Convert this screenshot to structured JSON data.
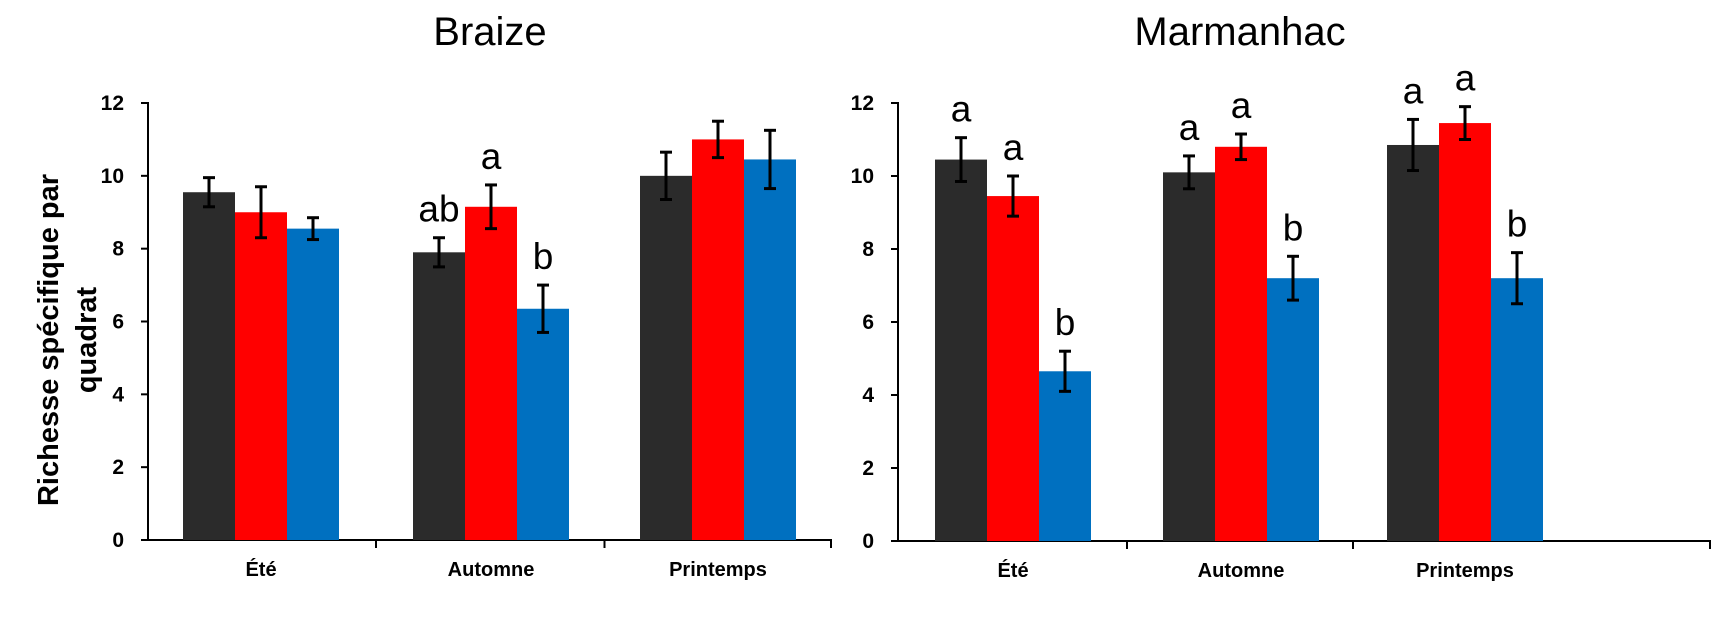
{
  "ylabel_line1": "Richesse spécifique par",
  "ylabel_line2": "quadrat",
  "chart_data": [
    {
      "type": "bar",
      "title": "Braize",
      "categories": [
        "Été",
        "Automne",
        "Printemps"
      ],
      "ylim": [
        0,
        12
      ],
      "yticks": [
        0,
        2,
        4,
        6,
        8,
        10,
        12
      ],
      "colors": [
        "#2b2b2b",
        "#ff0000",
        "#0070c0"
      ],
      "series": [
        {
          "values": [
            9.55,
            7.9,
            10.0
          ],
          "errors": [
            0.4,
            0.4,
            0.65
          ],
          "labels": [
            "",
            "ab",
            ""
          ]
        },
        {
          "values": [
            9.0,
            9.15,
            11.0
          ],
          "errors": [
            0.7,
            0.6,
            0.5
          ],
          "labels": [
            "",
            "a",
            ""
          ]
        },
        {
          "values": [
            8.55,
            6.35,
            10.45
          ],
          "errors": [
            0.3,
            0.65,
            0.8
          ],
          "labels": [
            "",
            "b",
            ""
          ]
        }
      ]
    },
    {
      "type": "bar",
      "title": "Marmanhac",
      "categories": [
        "Été",
        "Automne",
        "Printemps"
      ],
      "ylim": [
        0,
        12
      ],
      "yticks": [
        0,
        2,
        4,
        6,
        8,
        10,
        12
      ],
      "colors": [
        "#2b2b2b",
        "#ff0000",
        "#0070c0"
      ],
      "series": [
        {
          "values": [
            10.45,
            10.1,
            10.85
          ],
          "errors": [
            0.6,
            0.45,
            0.7
          ],
          "labels": [
            "a",
            "a",
            "a"
          ]
        },
        {
          "values": [
            9.45,
            10.8,
            11.45
          ],
          "errors": [
            0.55,
            0.35,
            0.45
          ],
          "labels": [
            "a",
            "a",
            "a"
          ]
        },
        {
          "values": [
            4.65,
            7.2,
            7.2
          ],
          "errors": [
            0.55,
            0.6,
            0.7
          ],
          "labels": [
            "b",
            "b",
            "b"
          ]
        }
      ]
    }
  ]
}
